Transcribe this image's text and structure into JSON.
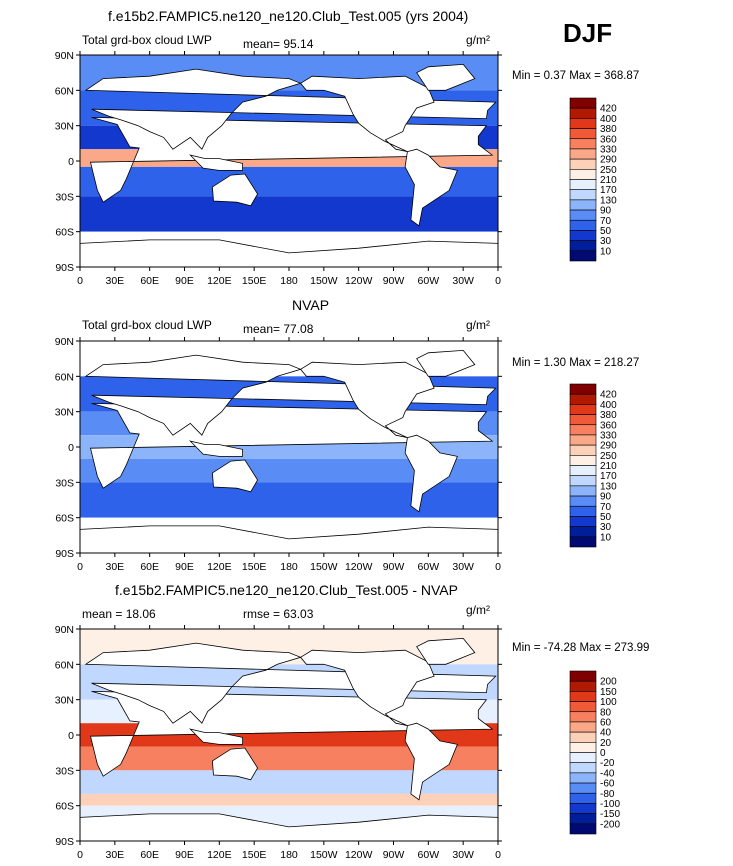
{
  "header": {
    "season": "DJF"
  },
  "panels": [
    {
      "id": "model",
      "title": "f.e15b2.FAMPIC5.ne120_ne120.Club_Test.005 (yrs 2004)",
      "left_label": "Total grd-box cloud LWP",
      "stat_label": "mean=  95.14",
      "units": "g/m²",
      "minmax": "Min =    0.37  Max =  368.87",
      "colorbar": [
        "420",
        "400",
        "380",
        "360",
        "330",
        "290",
        "250",
        "210",
        "170",
        "130",
        "90",
        "70",
        "50",
        "30",
        "10"
      ],
      "colorbar_colors": [
        "#800000",
        "#b01a00",
        "#e03818",
        "#f05a38",
        "#f78060",
        "#fba888",
        "#fdd0b8",
        "#fff0e6",
        "#e6f0ff",
        "#c0d8ff",
        "#8cb4fa",
        "#5a8cf5",
        "#2f62eb",
        "#1238cd",
        "#001e9a",
        "#000a70"
      ]
    },
    {
      "id": "obs",
      "title": "NVAP",
      "left_label": "Total grd-box cloud LWP",
      "stat_label": "mean=  77.08",
      "units": "g/m²",
      "minmax": "Min =    1.30  Max =  218.27",
      "colorbar": [
        "420",
        "400",
        "380",
        "360",
        "330",
        "290",
        "250",
        "210",
        "170",
        "130",
        "90",
        "70",
        "50",
        "30",
        "10"
      ],
      "colorbar_colors": [
        "#800000",
        "#b01a00",
        "#e03818",
        "#f05a38",
        "#f78060",
        "#fba888",
        "#fdd0b8",
        "#fff0e6",
        "#e6f0ff",
        "#c0d8ff",
        "#8cb4fa",
        "#5a8cf5",
        "#2f62eb",
        "#1238cd",
        "#001e9a",
        "#000a70"
      ]
    },
    {
      "id": "diff",
      "title": "f.e15b2.FAMPIC5.ne120_ne120.Club_Test.005 - NVAP",
      "left_label": "mean =   18.06",
      "stat_label": "rmse =   63.03",
      "units": "g/m²",
      "minmax": "Min = -74.28  Max =  273.99",
      "colorbar": [
        "200",
        "150",
        "100",
        "80",
        "60",
        "40",
        "20",
        "0",
        "-20",
        "-40",
        "-60",
        "-80",
        "-100",
        "-150",
        "-200"
      ],
      "colorbar_colors": [
        "#800000",
        "#b01a00",
        "#e03818",
        "#f05a38",
        "#f78060",
        "#fba888",
        "#fdd0b8",
        "#fff0e6",
        "#e6f0ff",
        "#c0d8ff",
        "#8cb4fa",
        "#5a8cf5",
        "#2f62eb",
        "#1238cd",
        "#001e9a",
        "#000a70"
      ]
    }
  ],
  "axes": {
    "lat_ticks": [
      "90N",
      "60N",
      "30N",
      "0",
      "30S",
      "60S",
      "90S"
    ],
    "lon_ticks": [
      "0",
      "30E",
      "60E",
      "90E",
      "120E",
      "150E",
      "180",
      "150W",
      "120W",
      "90W",
      "60W",
      "30W",
      "0"
    ]
  },
  "chart_data": [
    {
      "type": "heatmap",
      "title": "f.e15b2.FAMPIC5.ne120_ne120.Club_Test.005 (yrs 2004)",
      "variable": "Total grd-box cloud LWP",
      "units": "g/m2",
      "mean": 95.14,
      "min": 0.37,
      "max": 368.87,
      "xlim": [
        0,
        360
      ],
      "ylim": [
        -90,
        90
      ],
      "levels": [
        10,
        30,
        50,
        70,
        90,
        130,
        170,
        210,
        250,
        290,
        330,
        360,
        380,
        400,
        420
      ]
    },
    {
      "type": "heatmap",
      "title": "NVAP",
      "variable": "Total grd-box cloud LWP",
      "units": "g/m2",
      "mean": 77.08,
      "min": 1.3,
      "max": 218.27,
      "xlim": [
        0,
        360
      ],
      "ylim": [
        -90,
        90
      ],
      "levels": [
        10,
        30,
        50,
        70,
        90,
        130,
        170,
        210,
        250,
        290,
        330,
        360,
        380,
        400,
        420
      ]
    },
    {
      "type": "heatmap",
      "title": "f.e15b2.FAMPIC5.ne120_ne120.Club_Test.005 - NVAP",
      "units": "g/m2",
      "mean": 18.06,
      "rmse": 63.03,
      "min": -74.28,
      "max": 273.99,
      "xlim": [
        0,
        360
      ],
      "ylim": [
        -90,
        90
      ],
      "levels": [
        -200,
        -150,
        -100,
        -80,
        -60,
        -40,
        -20,
        0,
        20,
        40,
        60,
        80,
        100,
        150,
        200
      ]
    }
  ]
}
